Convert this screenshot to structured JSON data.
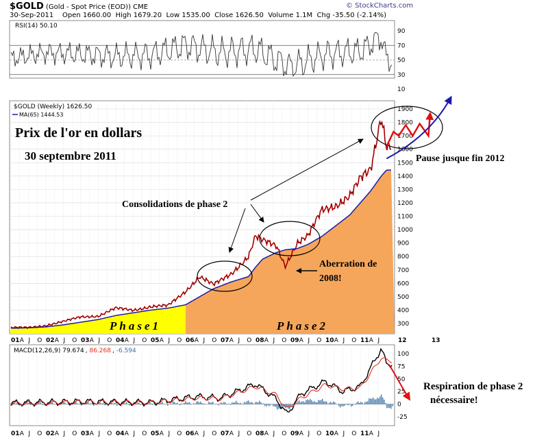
{
  "header": {
    "symbol": "$GOLD",
    "description": "(Gold - Spot Price (EOD)) CME",
    "brand": "© StockCharts.com",
    "date": "30-Sep-2011",
    "open_label": "Open",
    "open": "1660.00",
    "high_label": "High",
    "high": "1679.20",
    "low_label": "Low",
    "low": "1535.00",
    "close_label": "Close",
    "close": "1626.50",
    "volume_label": "Volume",
    "volume": "1.1M",
    "chg_label": "Chg",
    "chg": "-35.50 (-2.14%)"
  },
  "colors": {
    "price": "#cc0000",
    "ma": "#1a1aa8",
    "phase1": "#ffff00",
    "phase2": "#f5a65b",
    "rsi": "#333333",
    "macd_line": "#000000",
    "signal": "#e03020",
    "hist": "#3a6ea5",
    "arrow": "#e01010"
  },
  "rsi_panel": {
    "legend": "RSI(14) 50.10",
    "ticks": [
      "90",
      "70",
      "50",
      "30",
      "10"
    ]
  },
  "price_panel": {
    "legend": "$GOLD (Weekly) 1626.50",
    "ma_legend": "MA(65) 1444.53",
    "yticks": [
      "1900",
      "1800",
      "1700",
      "1600",
      "1500",
      "1400",
      "1300",
      "1200",
      "1100",
      "1000",
      "900",
      "800",
      "700",
      "600",
      "500",
      "400",
      "300"
    ],
    "xticks": [
      "01",
      "A",
      "J",
      "O",
      "02",
      "A",
      "J",
      "O",
      "03",
      "A",
      "J",
      "O",
      "04",
      "A",
      "J",
      "O",
      "05",
      "A",
      "J",
      "O",
      "06",
      "A",
      "J",
      "O",
      "07",
      "A",
      "J",
      "O",
      "08",
      "A",
      "J",
      "O",
      "09",
      "A",
      "J",
      "O",
      "10",
      "A",
      "J",
      "O",
      "11",
      "A",
      "J"
    ],
    "future_ticks": [
      "12",
      "13"
    ]
  },
  "annotations": {
    "title": "Prix de l'or en dollars",
    "date": "30 septembre 2011",
    "consolidations": "Consolidations de phase 2",
    "aberration_1": "Aberration de",
    "aberration_2": "2008!",
    "pause": "Pause jusque fin 2012",
    "phase1": "Phase1",
    "phase2": "Phase2",
    "respiration_1": "Respiration de phase 2",
    "respiration_2": "nécessaire!"
  },
  "macd_panel": {
    "legend_name": "MACD(12,26,9)",
    "macd": "79.674",
    "signal": "86.268",
    "hist": "-6.594",
    "ticks": [
      "100",
      "75",
      "50",
      "25",
      "0",
      "-25"
    ]
  },
  "chart_data": {
    "type": "line",
    "title": "Prix de l'or en dollars",
    "subtitle": "30 septembre 2011",
    "xlabel": "",
    "ylabel": "",
    "ylim": [
      250,
      1950
    ],
    "x": [
      2001.0,
      2001.5,
      2002.0,
      2002.5,
      2003.0,
      2003.5,
      2004.0,
      2004.5,
      2005.0,
      2005.5,
      2006.0,
      2006.4,
      2006.8,
      2007.3,
      2007.8,
      2008.0,
      2008.2,
      2008.6,
      2008.85,
      2009.2,
      2009.5,
      2009.9,
      2010.3,
      2010.7,
      2011.0,
      2011.3,
      2011.6,
      2011.75
    ],
    "series": [
      {
        "name": "$GOLD (Weekly)",
        "values": [
          270,
          270,
          285,
          315,
          350,
          355,
          415,
          400,
          425,
          435,
          540,
          650,
          590,
          670,
          800,
          950,
          920,
          880,
          730,
          900,
          950,
          1150,
          1180,
          1250,
          1380,
          1450,
          1850,
          1626.5
        ]
      },
      {
        "name": "MA(65)",
        "values": [
          265,
          268,
          275,
          290,
          310,
          330,
          360,
          380,
          400,
          415,
          440,
          500,
          560,
          610,
          650,
          720,
          780,
          830,
          850,
          860,
          890,
          950,
          1030,
          1110,
          1200,
          1290,
          1400,
          1444.53
        ]
      }
    ],
    "projection": {
      "x": [
        2011.75,
        2011.95,
        2012.1,
        2012.3,
        2012.5,
        2012.7,
        2012.95
      ],
      "values": [
        1620,
        1730,
        1700,
        1780,
        1700,
        1790,
        1700
      ]
    },
    "rsi": {
      "x": [
        2001,
        2002,
        2003,
        2004,
        2005,
        2006,
        2007,
        2008,
        2009,
        2010,
        2011,
        2011.6,
        2011.75
      ],
      "values": [
        52,
        60,
        58,
        55,
        57,
        70,
        60,
        65,
        40,
        58,
        62,
        82,
        50.1
      ],
      "range": [
        0,
        100
      ]
    },
    "macd": {
      "x": [
        2001,
        2003,
        2005,
        2006.3,
        2007,
        2008,
        2008.6,
        2008.9,
        2009.3,
        2010,
        2010.5,
        2011,
        2011.6,
        2011.75
      ],
      "macd": [
        2,
        5,
        3,
        15,
        12,
        40,
        10,
        -20,
        20,
        45,
        25,
        35,
        110,
        79.674
      ],
      "signal": [
        1,
        4,
        3,
        12,
        11,
        35,
        18,
        -10,
        12,
        38,
        30,
        32,
        92,
        86.268
      ],
      "hist": [
        1,
        1,
        0,
        3,
        1,
        5,
        -8,
        -10,
        8,
        7,
        -5,
        3,
        18,
        -6.594
      ],
      "range": [
        -30,
        110
      ]
    }
  }
}
